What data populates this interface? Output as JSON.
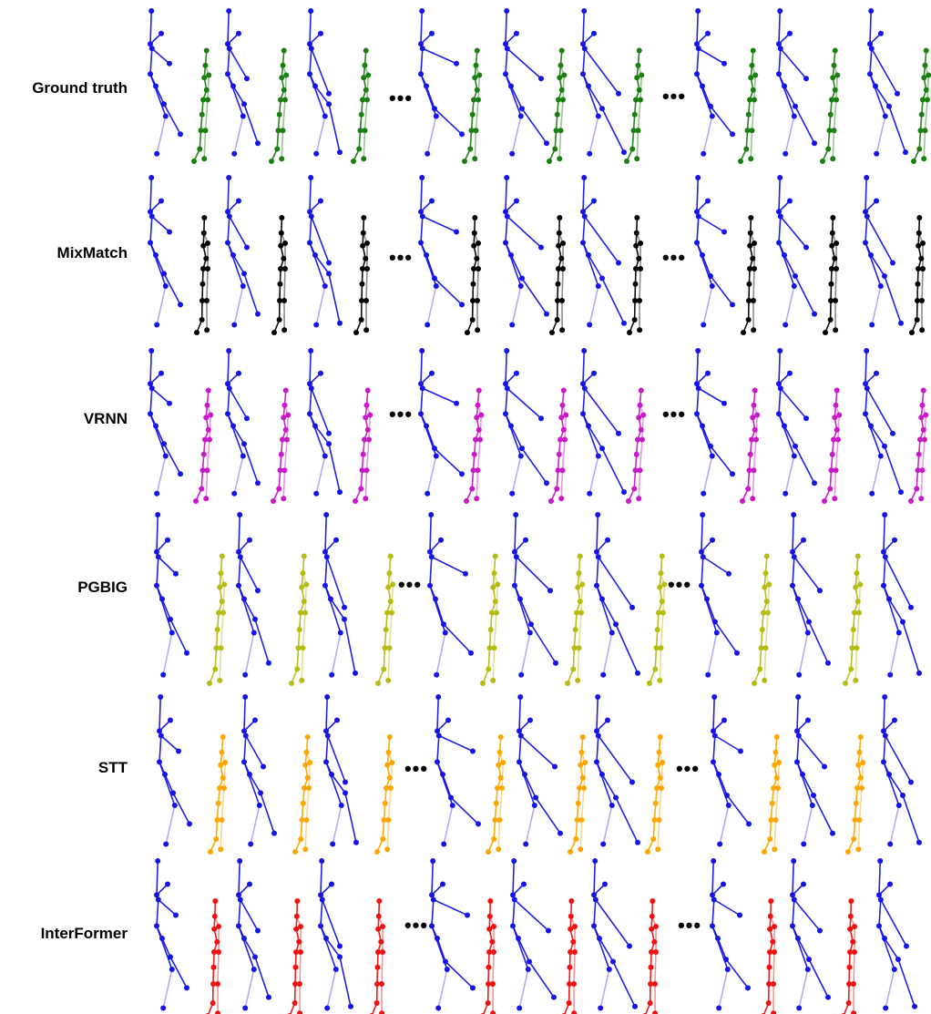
{
  "rows": [
    {
      "label": "Ground truth",
      "color": "#1a7f10"
    },
    {
      "label": "MixMatch",
      "color": "#000000"
    },
    {
      "label": "VRNN",
      "color": "#c818c8"
    },
    {
      "label": "PGBIG",
      "color": "#b6bb10"
    },
    {
      "label": "STT",
      "color": "#ffa500"
    },
    {
      "label": "InterFormer",
      "color": "#f01010"
    }
  ],
  "ellipsis": "•••",
  "colors": {
    "observed": "#1414e6"
  }
}
